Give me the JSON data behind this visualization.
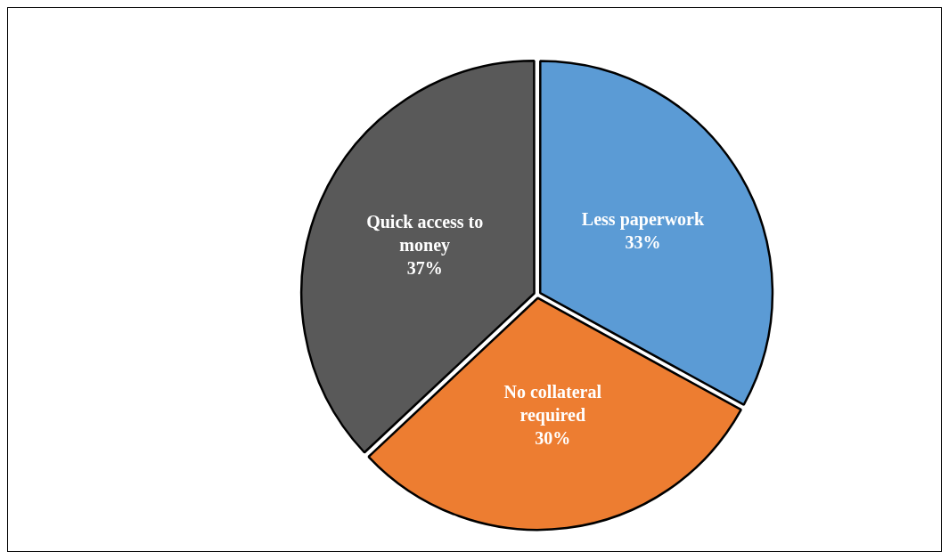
{
  "chart_data": {
    "type": "pie",
    "categories": [
      "Less paperwork",
      "No collateral required",
      "Quick access to money"
    ],
    "values": [
      33,
      30,
      37
    ],
    "value_labels": [
      "33%",
      "30%",
      "37%"
    ],
    "colors": [
      "#5b9bd5",
      "#ed7d31",
      "#595959"
    ],
    "legend": false
  }
}
